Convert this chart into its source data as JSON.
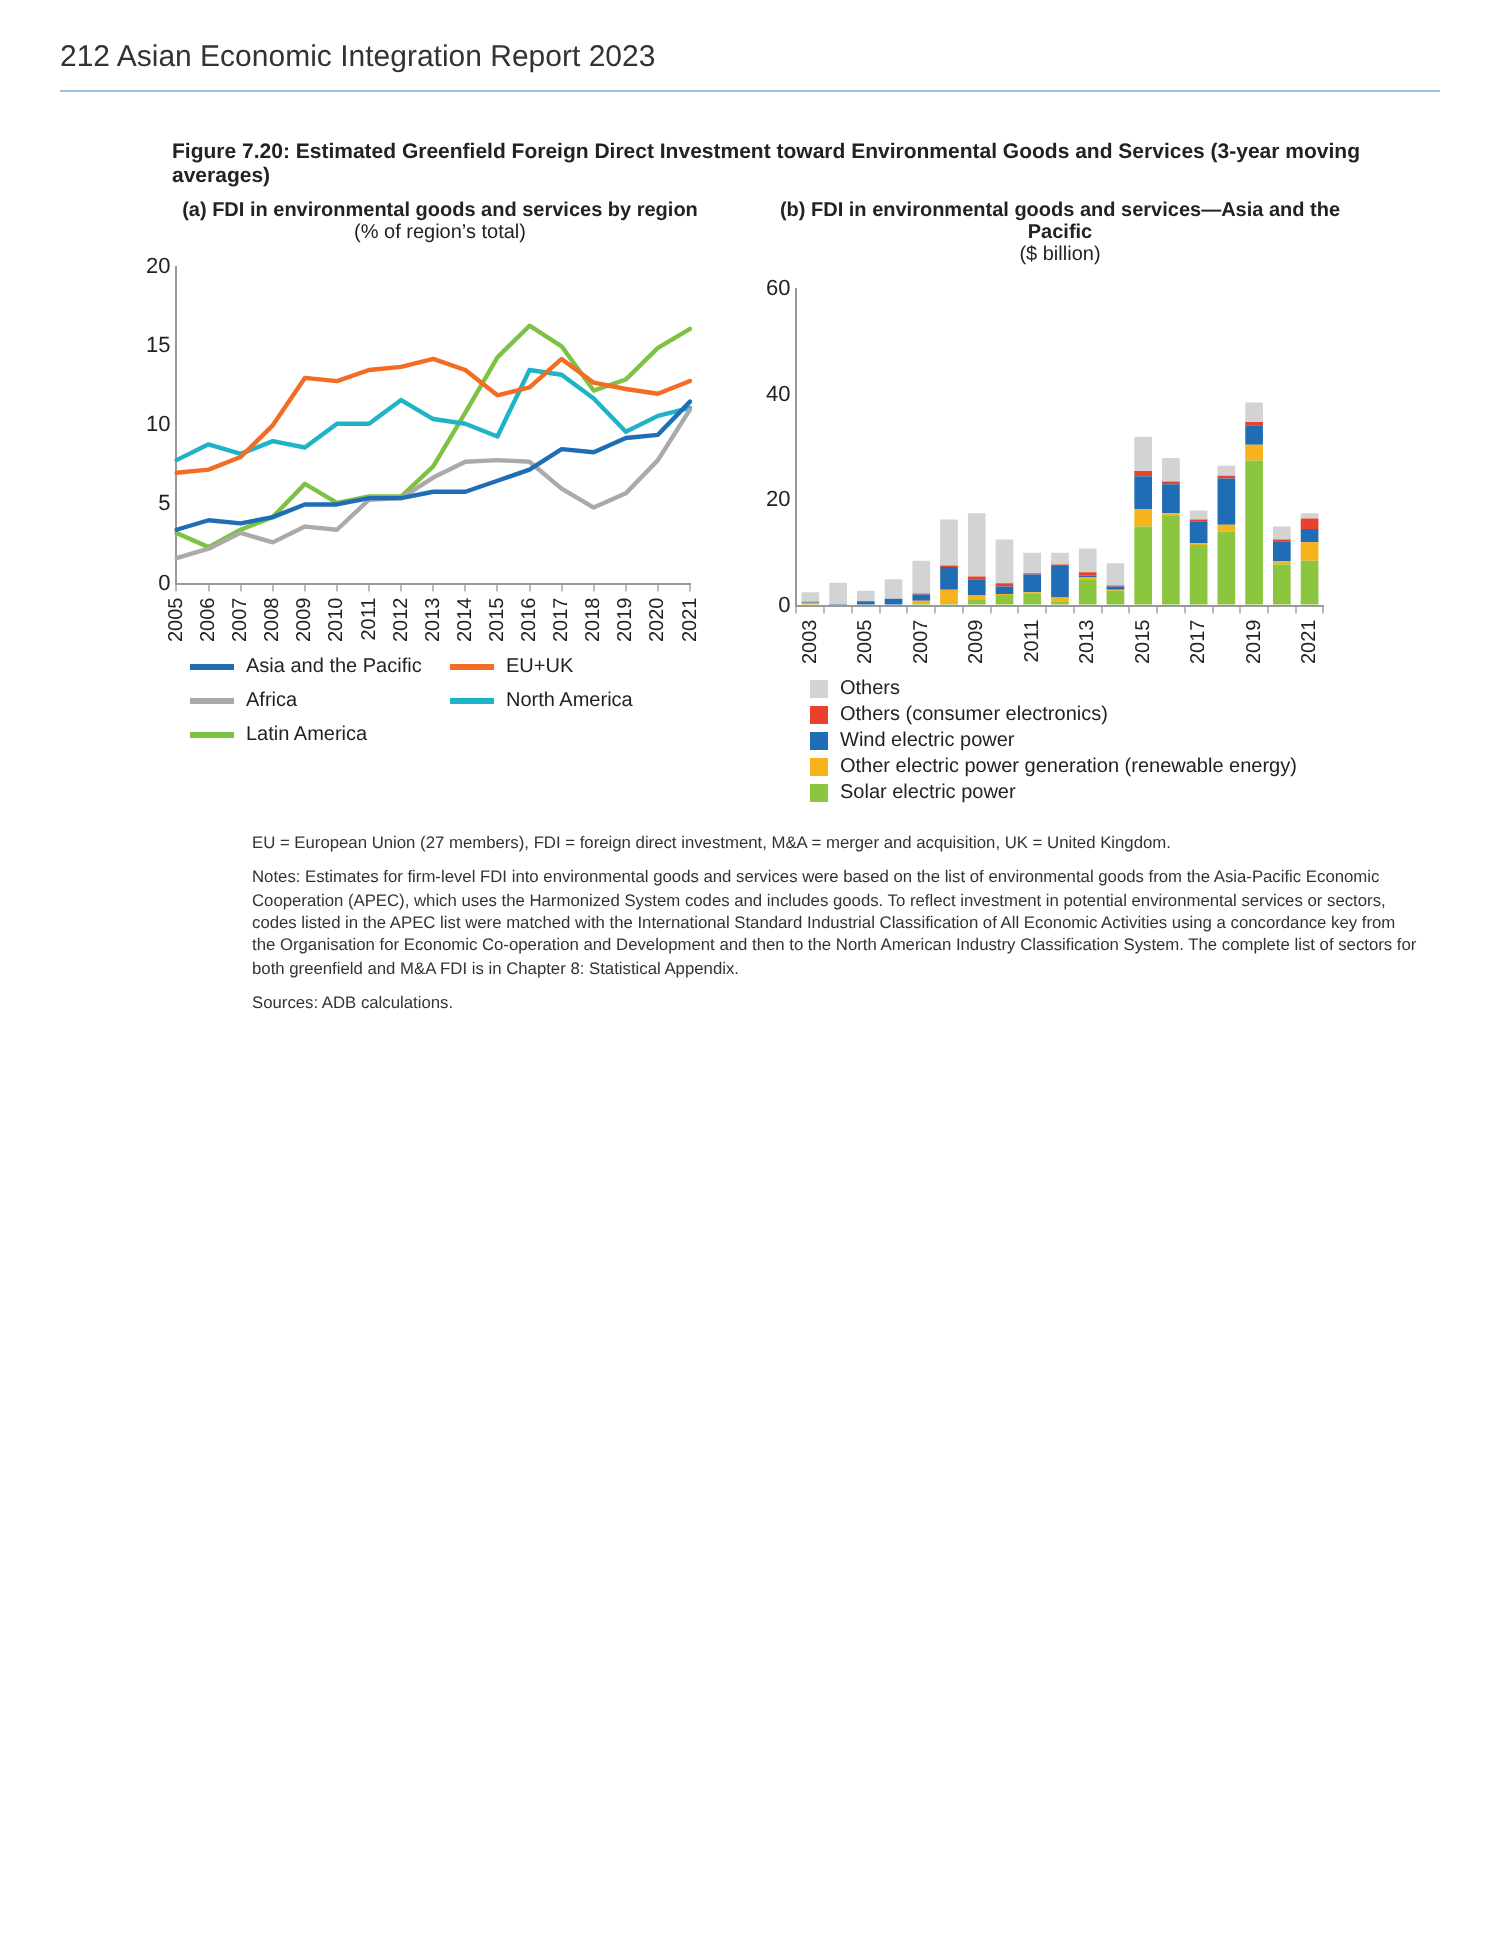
{
  "chart_data": [
    {
      "type": "line",
      "title": "(a) FDI in environmental goods and services by region",
      "subtitle": "(% of region’s total)",
      "annotations": [
        "212 Asian Economic Integration Report 2023",
        "Figure 7.20: Estimated Greenfield Foreign Direct Investment toward Environmental Goods and Services (3-year moving averages)"
      ],
      "categories": [
        "2005",
        "2006",
        "2007",
        "2008",
        "2009",
        "2010",
        "2011",
        "2012",
        "2013",
        "2014",
        "2015",
        "2016",
        "2017",
        "2018",
        "2019",
        "2020",
        "2021"
      ],
      "series": [
        {
          "name": "Asia and the Pacific",
          "color": "#1f6db5",
          "values": [
            3.4,
            4.0,
            3.8,
            4.2,
            5.0,
            5.0,
            5.4,
            5.4,
            5.8,
            5.8,
            6.5,
            7.2,
            8.5,
            8.3,
            9.2,
            9.4,
            11.5
          ]
        },
        {
          "name": "EU+UK",
          "color": "#f26c23",
          "values": [
            7.0,
            7.2,
            8.0,
            10.0,
            13.0,
            12.8,
            13.5,
            13.7,
            14.2,
            13.5,
            11.9,
            12.4,
            14.2,
            12.7,
            12.3,
            12.0,
            12.8
          ]
        },
        {
          "name": "Africa",
          "color": "#aaaaaa",
          "values": [
            1.6,
            2.2,
            3.2,
            2.6,
            3.6,
            3.4,
            5.3,
            5.4,
            6.7,
            7.7,
            7.8,
            7.7,
            6.0,
            4.8,
            5.7,
            7.8,
            11.0
          ]
        },
        {
          "name": "North America",
          "color": "#1fb3c8",
          "values": [
            7.8,
            8.8,
            8.2,
            9.0,
            8.6,
            10.1,
            10.1,
            11.6,
            10.4,
            10.1,
            9.3,
            13.5,
            13.2,
            11.7,
            9.6,
            10.6,
            11.1
          ]
        },
        {
          "name": "Latin America",
          "color": "#7dc242",
          "values": [
            3.2,
            2.3,
            3.4,
            4.2,
            6.3,
            5.1,
            5.5,
            5.5,
            7.4,
            10.8,
            14.3,
            16.3,
            15.0,
            12.2,
            12.9,
            14.9,
            16.1
          ]
        }
      ],
      "ylim": [
        0,
        20
      ],
      "yticks": [
        0,
        5,
        10,
        15,
        20
      ],
      "legend": "bottom",
      "marker": "none",
      "line_style": "solid"
    },
    {
      "type": "bar",
      "title": "(b) FDI in environmental goods and services—Asia and the Pacific",
      "subtitle": "($ billion)",
      "annotations": [
        "EU = European Union (27 members), FDI = foreign direct investment, M&A = merger and acquisition, UK = United Kingdom.",
        "Notes: Estimates for firm-level FDI into environmental goods and services were based on the list of environmental goods from the Asia-Pacific Economic Cooperation (APEC), which uses the Harmonized System codes and includes goods. To reflect investment in potential environmental services or sectors, codes listed in the APEC list were matched with the International Standard Industrial Classification of All Economic Activities using a concordance key from the Organisation for Economic Co-operation and Development and then to the North American Industry Classification System. The complete list of sectors for both greenfield and M&A FDI is in Chapter 8: Statistical Appendix.",
        "Sources: ADB calculations."
      ],
      "categories": [
        "2003",
        null,
        "2005",
        null,
        "2007",
        null,
        "2009",
        null,
        "2011",
        null,
        "2013",
        null,
        "2015",
        null,
        "2017",
        null,
        "2019",
        null,
        "2021"
      ],
      "stacked": true,
      "series": [
        {
          "name": "Solar electric power",
          "color": "#8cc63f",
          "values": [
            0,
            0,
            0,
            0,
            0.3,
            0.3,
            1.2,
            2.0,
            2.2,
            0.8,
            5.0,
            2.8,
            15,
            17,
            11.5,
            14,
            27.5,
            7.8,
            8.5
          ]
        },
        {
          "name": "Other electric power generation (renewable energy)",
          "color": "#f7b31b",
          "values": [
            0.5,
            0,
            0,
            0,
            0.6,
            2.7,
            0.8,
            0.2,
            0.3,
            0.7,
            0.3,
            0.2,
            3.3,
            0.5,
            0.3,
            1.3,
            3.0,
            0.6,
            3.5
          ]
        },
        {
          "name": "Wind electric power",
          "color": "#1f6db5",
          "values": [
            0.2,
            0.3,
            0.8,
            1.3,
            1.2,
            4.3,
            3.0,
            1.4,
            3.4,
            6.0,
            0.4,
            0.6,
            6.2,
            5.5,
            4.2,
            8.8,
            3.7,
            3.8,
            2.5
          ]
        },
        {
          "name": "Others (consumer electronics)",
          "color": "#e8412c",
          "values": [
            0,
            0,
            0,
            0,
            0.2,
            0.3,
            0.5,
            0.6,
            0.2,
            0.3,
            0.6,
            0.2,
            1.0,
            0.5,
            0.3,
            0.5,
            0.6,
            0.3,
            2.0
          ]
        },
        {
          "name": "Others",
          "color": "#d3d3d3",
          "values": [
            1.8,
            4.0,
            2.0,
            3.7,
            6.2,
            8.7,
            12.0,
            8.3,
            3.9,
            2.2,
            4.5,
            4.2,
            6.5,
            4.5,
            1.7,
            1.9,
            3.7,
            2.5,
            1.0
          ]
        }
      ],
      "ylim": [
        0,
        60
      ],
      "yticks": [
        0,
        20,
        40,
        60
      ],
      "legend": "bottom"
    }
  ]
}
